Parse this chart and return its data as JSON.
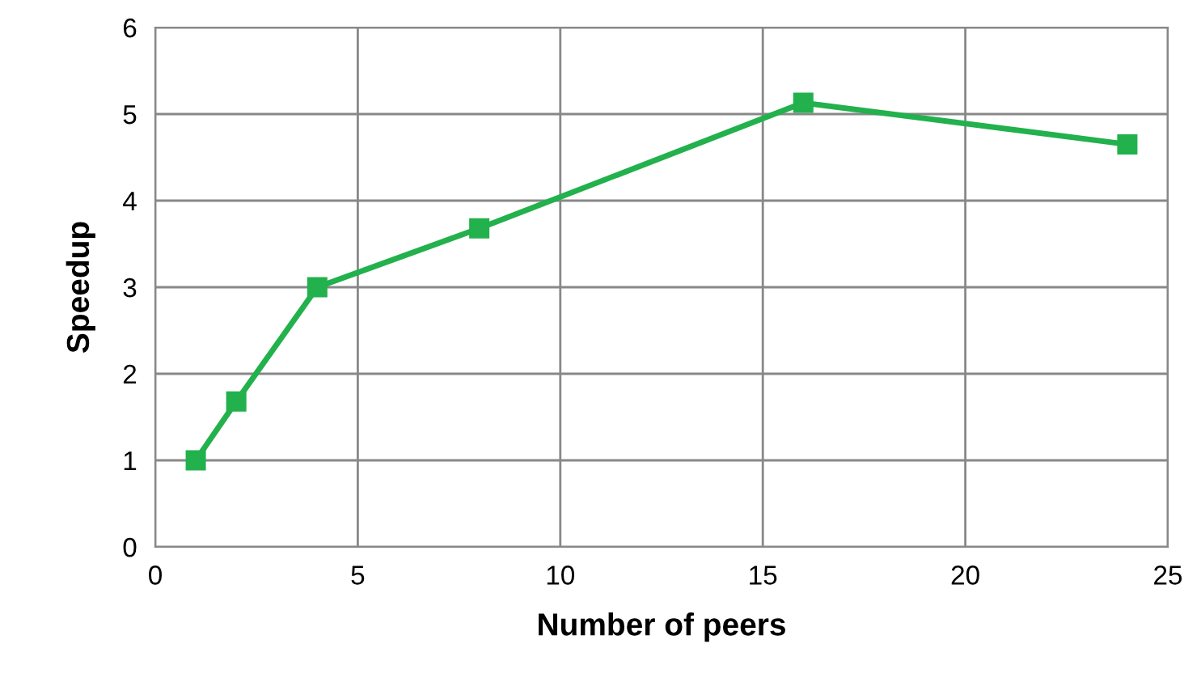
{
  "chart_data": {
    "type": "line",
    "xlabel": "Number of peers",
    "ylabel": "Speedup",
    "x": [
      1,
      2,
      4,
      8,
      16,
      24
    ],
    "series": [
      {
        "color": "#22b14c",
        "values": [
          1,
          1.68,
          3,
          3.68,
          5.13,
          4.65
        ]
      }
    ],
    "xlim": [
      0,
      25
    ],
    "xticks": [
      0,
      5,
      10,
      15,
      20,
      25
    ],
    "ylim": [
      0,
      6
    ],
    "yticks": [
      0,
      1,
      2,
      3,
      4,
      5,
      6
    ],
    "grid": true,
    "marker": "square",
    "line_style": "solid",
    "legend": false
  }
}
